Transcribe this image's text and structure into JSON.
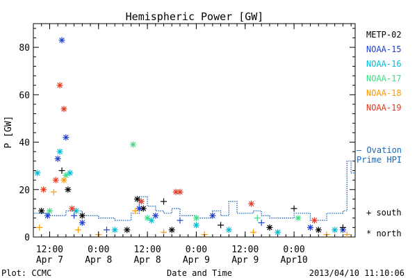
{
  "chart_data": {
    "type": "scatter",
    "title": "Hemispheric Power [GW]",
    "xlabel": "Date and Time",
    "ylabel": "P [GW]",
    "ylim": [
      0,
      90
    ],
    "yticks": [
      0,
      20,
      40,
      60,
      80
    ],
    "xlim": [
      "2013-04-07 08:00",
      "2013-04-10 15:00"
    ],
    "xticks": [
      {
        "time": "2013-04-07 12:00",
        "line1": "12:00",
        "line2": "Apr 7"
      },
      {
        "time": "2013-04-08 00:00",
        "line1": "0:00",
        "line2": "Apr 8"
      },
      {
        "time": "2013-04-08 12:00",
        "line1": "12:00",
        "line2": "Apr 8"
      },
      {
        "time": "2013-04-09 00:00",
        "line1": "0:00",
        "line2": "Apr 9"
      },
      {
        "time": "2013-04-09 12:00",
        "line1": "12:00",
        "line2": "Apr 9"
      },
      {
        "time": "2013-04-10 00:00",
        "line1": "0:00",
        "line2": "Apr10"
      }
    ],
    "legend": {
      "placement": "right",
      "entries": [
        {
          "name": "METP-02",
          "color": "#000000"
        },
        {
          "name": "NOAA-15",
          "color": "#1f3fd0"
        },
        {
          "name": "NOAA-16",
          "color": "#00bcd4"
        },
        {
          "name": "NOAA-17",
          "color": "#3ddc84"
        },
        {
          "name": "NOAA-18",
          "color": "#ff9800"
        },
        {
          "name": "NOAA-19",
          "color": "#e53920"
        }
      ]
    },
    "ovation_label": [
      "— Ovation",
      "Prime HPI"
    ],
    "ovation_color": "#1565c0",
    "marker_legend": [
      {
        "symbol": "+",
        "label": "south"
      },
      {
        "symbol": "*",
        "label": "north"
      }
    ],
    "series": [
      {
        "name": "NOAA-15",
        "color": "#1f3fd0",
        "points": [
          [
            "2013-04-07 11:30",
            9,
            "n"
          ],
          [
            "2013-04-07 14:00",
            33,
            "n"
          ],
          [
            "2013-04-07 15:00",
            83,
            "n"
          ],
          [
            "2013-04-07 16:00",
            42,
            "n"
          ],
          [
            "2013-04-07 18:00",
            9,
            "s"
          ],
          [
            "2013-04-07 20:00",
            6,
            "n"
          ],
          [
            "2013-04-08 02:00",
            3,
            "s"
          ],
          [
            "2013-04-08 10:00",
            12,
            "n"
          ],
          [
            "2013-04-08 14:00",
            9,
            "n"
          ],
          [
            "2013-04-08 20:00",
            7,
            "s"
          ],
          [
            "2013-04-09 04:00",
            9,
            "n"
          ],
          [
            "2013-04-09 16:00",
            6,
            "s"
          ],
          [
            "2013-04-10 04:00",
            4,
            "n"
          ],
          [
            "2013-04-10 12:00",
            3,
            "n"
          ]
        ]
      },
      {
        "name": "METP-02",
        "color": "#000000",
        "points": [
          [
            "2013-04-07 10:00",
            11,
            "n"
          ],
          [
            "2013-04-07 15:00",
            28,
            "s"
          ],
          [
            "2013-04-07 16:30",
            20,
            "n"
          ],
          [
            "2013-04-07 20:00",
            9,
            "n"
          ],
          [
            "2013-04-08 07:00",
            3,
            "n"
          ],
          [
            "2013-04-08 09:30",
            16,
            "n"
          ],
          [
            "2013-04-08 11:00",
            12,
            "n"
          ],
          [
            "2013-04-08 16:00",
            15,
            "s"
          ],
          [
            "2013-04-08 18:00",
            3,
            "n"
          ],
          [
            "2013-04-09 06:00",
            5,
            "s"
          ],
          [
            "2013-04-09 18:00",
            4,
            "n"
          ],
          [
            "2013-04-10 00:00",
            12,
            "s"
          ],
          [
            "2013-04-10 06:00",
            3,
            "n"
          ],
          [
            "2013-04-10 12:00",
            4,
            "s"
          ]
        ]
      },
      {
        "name": "NOAA-16",
        "color": "#00bcd4",
        "points": [
          [
            "2013-04-07 09:00",
            27,
            "n"
          ],
          [
            "2013-04-07 14:30",
            36,
            "n"
          ],
          [
            "2013-04-07 17:00",
            27,
            "n"
          ],
          [
            "2013-04-07 18:30",
            11,
            "n"
          ],
          [
            "2013-04-08 04:00",
            3,
            "n"
          ],
          [
            "2013-04-08 13:00",
            7,
            "n"
          ],
          [
            "2013-04-09 00:00",
            5,
            "n"
          ],
          [
            "2013-04-09 08:00",
            3,
            "n"
          ],
          [
            "2013-04-09 20:00",
            2,
            "n"
          ],
          [
            "2013-04-10 10:00",
            3,
            "n"
          ]
        ]
      },
      {
        "name": "NOAA-17",
        "color": "#3ddc84",
        "points": [
          [
            "2013-04-07 12:00",
            11,
            "n"
          ],
          [
            "2013-04-07 16:00",
            26,
            "n"
          ],
          [
            "2013-04-08 08:30",
            39,
            "n"
          ],
          [
            "2013-04-08 12:00",
            8,
            "n"
          ],
          [
            "2013-04-09 00:00",
            8,
            "n"
          ],
          [
            "2013-04-09 15:00",
            8,
            "s"
          ],
          [
            "2013-04-10 01:00",
            8,
            "n"
          ]
        ]
      },
      {
        "name": "NOAA-18",
        "color": "#ff9800",
        "points": [
          [
            "2013-04-07 09:30",
            4,
            "s"
          ],
          [
            "2013-04-07 13:00",
            19,
            "s"
          ],
          [
            "2013-04-07 15:30",
            24,
            "n"
          ],
          [
            "2013-04-07 19:00",
            3,
            "s"
          ],
          [
            "2013-04-08 00:00",
            1,
            "s"
          ],
          [
            "2013-04-08 09:00",
            11,
            "s"
          ],
          [
            "2013-04-08 16:00",
            2,
            "s"
          ],
          [
            "2013-04-09 02:00",
            1,
            "s"
          ],
          [
            "2013-04-09 14:00",
            2,
            "s"
          ],
          [
            "2013-04-10 08:00",
            1,
            "s"
          ],
          [
            "2013-04-10 13:00",
            1,
            "s"
          ]
        ]
      },
      {
        "name": "NOAA-19",
        "color": "#e53920",
        "points": [
          [
            "2013-04-07 10:30",
            20,
            "n"
          ],
          [
            "2013-04-07 13:30",
            24,
            "n"
          ],
          [
            "2013-04-07 14:30",
            64,
            "n"
          ],
          [
            "2013-04-07 15:30",
            54,
            "n"
          ],
          [
            "2013-04-07 17:30",
            12,
            "n"
          ],
          [
            "2013-04-08 10:30",
            15,
            "n"
          ],
          [
            "2013-04-08 19:00",
            19,
            "n"
          ],
          [
            "2013-04-08 20:00",
            19,
            "n"
          ],
          [
            "2013-04-09 13:30",
            14,
            "n"
          ],
          [
            "2013-04-10 05:00",
            7,
            "n"
          ]
        ]
      }
    ],
    "ovation": [
      [
        "2013-04-07 08:00",
        10
      ],
      [
        "2013-04-07 12:00",
        9
      ],
      [
        "2013-04-07 16:00",
        11
      ],
      [
        "2013-04-07 20:00",
        9
      ],
      [
        "2013-04-08 00:00",
        8
      ],
      [
        "2013-04-08 04:00",
        7
      ],
      [
        "2013-04-08 08:00",
        10
      ],
      [
        "2013-04-08 10:00",
        17
      ],
      [
        "2013-04-08 12:00",
        13
      ],
      [
        "2013-04-08 14:00",
        11
      ],
      [
        "2013-04-08 16:00",
        10
      ],
      [
        "2013-04-08 18:00",
        12
      ],
      [
        "2013-04-08 20:00",
        9
      ],
      [
        "2013-04-09 00:00",
        8
      ],
      [
        "2013-04-09 04:00",
        11
      ],
      [
        "2013-04-09 06:00",
        9
      ],
      [
        "2013-04-09 08:00",
        15
      ],
      [
        "2013-04-09 10:00",
        10
      ],
      [
        "2013-04-09 14:00",
        11
      ],
      [
        "2013-04-09 16:00",
        9
      ],
      [
        "2013-04-09 18:00",
        8
      ],
      [
        "2013-04-10 00:00",
        10
      ],
      [
        "2013-04-10 04:00",
        7
      ],
      [
        "2013-04-10 08:00",
        10
      ],
      [
        "2013-04-10 12:00",
        11
      ],
      [
        "2013-04-10 13:00",
        32
      ],
      [
        "2013-04-10 14:00",
        27
      ],
      [
        "2013-04-10 15:00",
        27
      ]
    ]
  },
  "footer": {
    "left": "Plot: CCMC",
    "center": "Date and Time",
    "right": "2013/04/10 11:10:06"
  }
}
